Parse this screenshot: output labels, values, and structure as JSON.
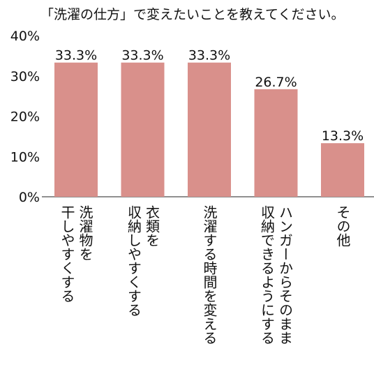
{
  "chart_data": {
    "type": "bar",
    "title": "「洗濯の仕方」で変えたいことを教えてください。",
    "xlabel": "",
    "ylabel": "",
    "ylim": [
      0,
      40
    ],
    "yticks": [
      "0%",
      "10%",
      "20%",
      "30%",
      "40%"
    ],
    "categories": [
      [
        "洗濯物を",
        "干しやすくする"
      ],
      [
        "衣類を",
        "収納しやすくする"
      ],
      [
        "洗濯する時間を変える"
      ],
      [
        "ハンガーからそのまま",
        "収納できるようにする"
      ],
      [
        "その他"
      ]
    ],
    "values": [
      33.3,
      33.3,
      33.3,
      26.7,
      13.3
    ],
    "value_labels": [
      "33.3%",
      "33.3%",
      "33.3%",
      "26.7%",
      "13.3%"
    ],
    "bar_color": "#d9908b",
    "grid": false,
    "legend": "none"
  }
}
